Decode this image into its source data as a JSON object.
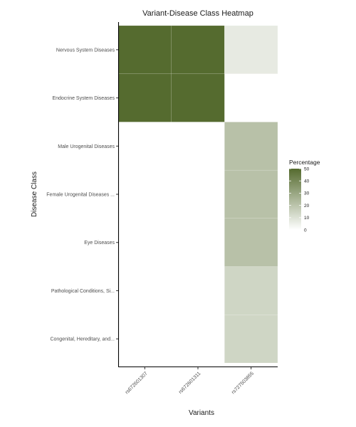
{
  "chart_data": {
    "type": "heatmap",
    "title": "Variant-Disease Class Heatmap",
    "xlabel": "Variants",
    "ylabel": "Disease Class",
    "x": [
      "rs672601307",
      "rs672601311",
      "rs727503855"
    ],
    "y": [
      "Nervous System Diseases",
      "Endocrine System Diseases",
      "Male Urogenital Diseases",
      "Female Urogenital Diseases ...",
      "Eye Diseases",
      "Pathological Conditions, Si...",
      "Congenital, Hereditary, and..."
    ],
    "cells": [
      {
        "x": "rs672601307",
        "y": "Nervous System Diseases",
        "value": 50
      },
      {
        "x": "rs672601311",
        "y": "Nervous System Diseases",
        "value": 50
      },
      {
        "x": "rs727503855",
        "y": "Nervous System Diseases",
        "value": 7
      },
      {
        "x": "rs672601307",
        "y": "Endocrine System Diseases",
        "value": 50
      },
      {
        "x": "rs672601311",
        "y": "Endocrine System Diseases",
        "value": 50
      },
      {
        "x": "rs727503855",
        "y": "Male Urogenital Diseases",
        "value": 21
      },
      {
        "x": "rs727503855",
        "y": "Female Urogenital Diseases ...",
        "value": 21
      },
      {
        "x": "rs727503855",
        "y": "Eye Diseases",
        "value": 21
      },
      {
        "x": "rs727503855",
        "y": "Pathological Conditions, Si...",
        "value": 14
      },
      {
        "x": "rs727503855",
        "y": "Congenital, Hereditary, and...",
        "value": 14
      }
    ],
    "legend": {
      "title": "Percentage",
      "ticks": [
        0,
        10,
        20,
        30,
        40,
        50
      ],
      "range": [
        0,
        50
      ],
      "low_color": "#ffffff",
      "high_color": "#556b2f",
      "placement": "right"
    }
  }
}
